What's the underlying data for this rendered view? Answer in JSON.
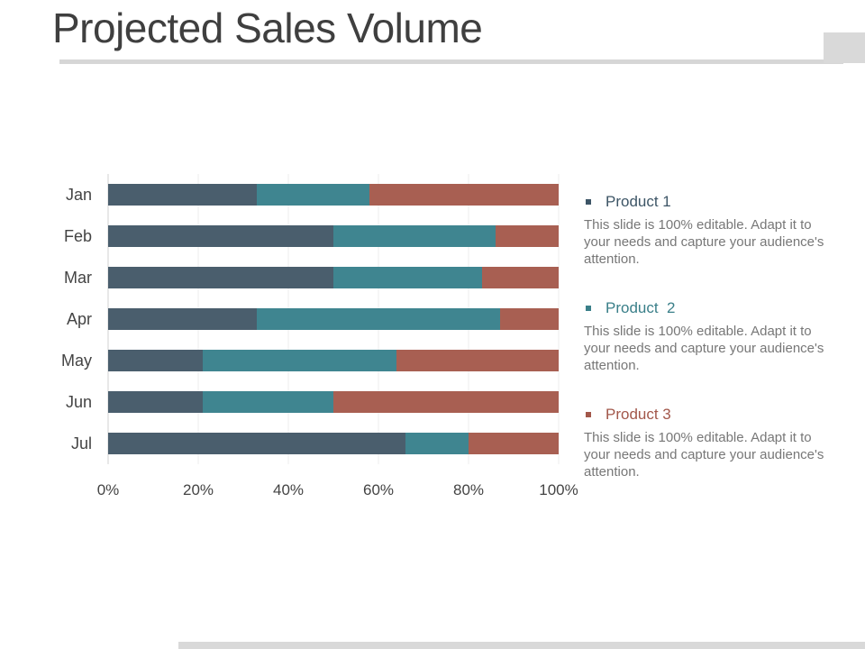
{
  "title": "Projected Sales Volume",
  "chart_data": {
    "type": "bar",
    "orientation": "horizontal",
    "stacked": "percent",
    "categories": [
      "Jan",
      "Feb",
      "Mar",
      "Apr",
      "May",
      "Jun",
      "Jul"
    ],
    "series": [
      {
        "name": "Product 1",
        "color": "#4a5e6d",
        "values": [
          33,
          50,
          50,
          33,
          21,
          21,
          66
        ]
      },
      {
        "name": "Product  2",
        "color": "#3f8590",
        "values": [
          25,
          36,
          33,
          54,
          43,
          29,
          14
        ]
      },
      {
        "name": "Product 3",
        "color": "#a85f52",
        "values": [
          42,
          14,
          17,
          13,
          36,
          50,
          20
        ]
      }
    ],
    "xlim": [
      0,
      100
    ],
    "xticks": [
      "0%",
      "20%",
      "40%",
      "60%",
      "80%",
      "100%"
    ],
    "grid": true,
    "legend_position": "right"
  },
  "legend": [
    {
      "label": "Product 1",
      "color": "#3d5566",
      "desc": "This slide is 100% editable. Adapt it to your needs and capture your audience's attention."
    },
    {
      "label": "Product  2",
      "color": "#3a7f89",
      "desc": "This slide is 100% editable. Adapt it to your needs and capture your audience's attention."
    },
    {
      "label": "Product 3",
      "color": "#a2574a",
      "desc": "This slide is 100% editable. Adapt it to your needs and capture your audience's attention."
    }
  ]
}
